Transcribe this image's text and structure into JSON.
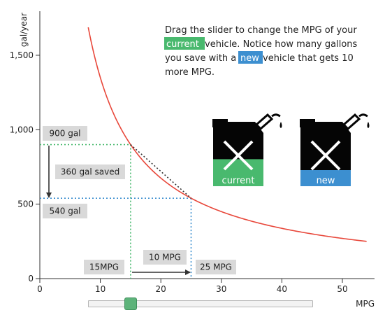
{
  "instructions": {
    "line1": "Drag the slider to change the MPG of your",
    "line2_hl": "current",
    "line2_rest": " vehicle. Notice how many gallons",
    "line3_pre": "you save with a ",
    "line3_hl": "new",
    "line3_rest": " vehicle that gets 10",
    "line4": "more MPG."
  },
  "cans": {
    "current_label": "current",
    "new_label": "new",
    "current_level": 0.42,
    "new_level": 0.25
  },
  "colors": {
    "curve": "#e8473a",
    "current": "#49b96e",
    "new": "#3c8fd0",
    "can_body": "#050505",
    "guide_current": "#49b96e",
    "guide_new": "#3c8fd0",
    "callout_bg": "#d9d9d9"
  },
  "slider": {
    "min": 0,
    "max": 50,
    "value": 15
  },
  "chart_data": {
    "type": "line",
    "x_label": "MPG",
    "y_label": "gal/year",
    "xlim": [
      0,
      55
    ],
    "ylim": [
      0,
      1750
    ],
    "x_ticks": [
      0,
      10,
      20,
      30,
      40,
      50
    ],
    "y_ticks": [
      0,
      500,
      1000,
      1500
    ],
    "y_tick_labels": [
      "0",
      "500",
      "1,000",
      "1,500"
    ],
    "series": [
      {
        "function": "13500 / mpg",
        "x_from": 8,
        "x_to": 54
      }
    ],
    "current_mpg": 15,
    "new_mpg": 25,
    "current_gal": 900,
    "new_gal": 540,
    "labels": {
      "current_gal": "900 gal",
      "new_gal": "540 gal",
      "saved": "360 gal saved",
      "current_mpg": "15MPG",
      "new_mpg": "25 MPG",
      "diff_mpg": "10 MPG"
    }
  }
}
